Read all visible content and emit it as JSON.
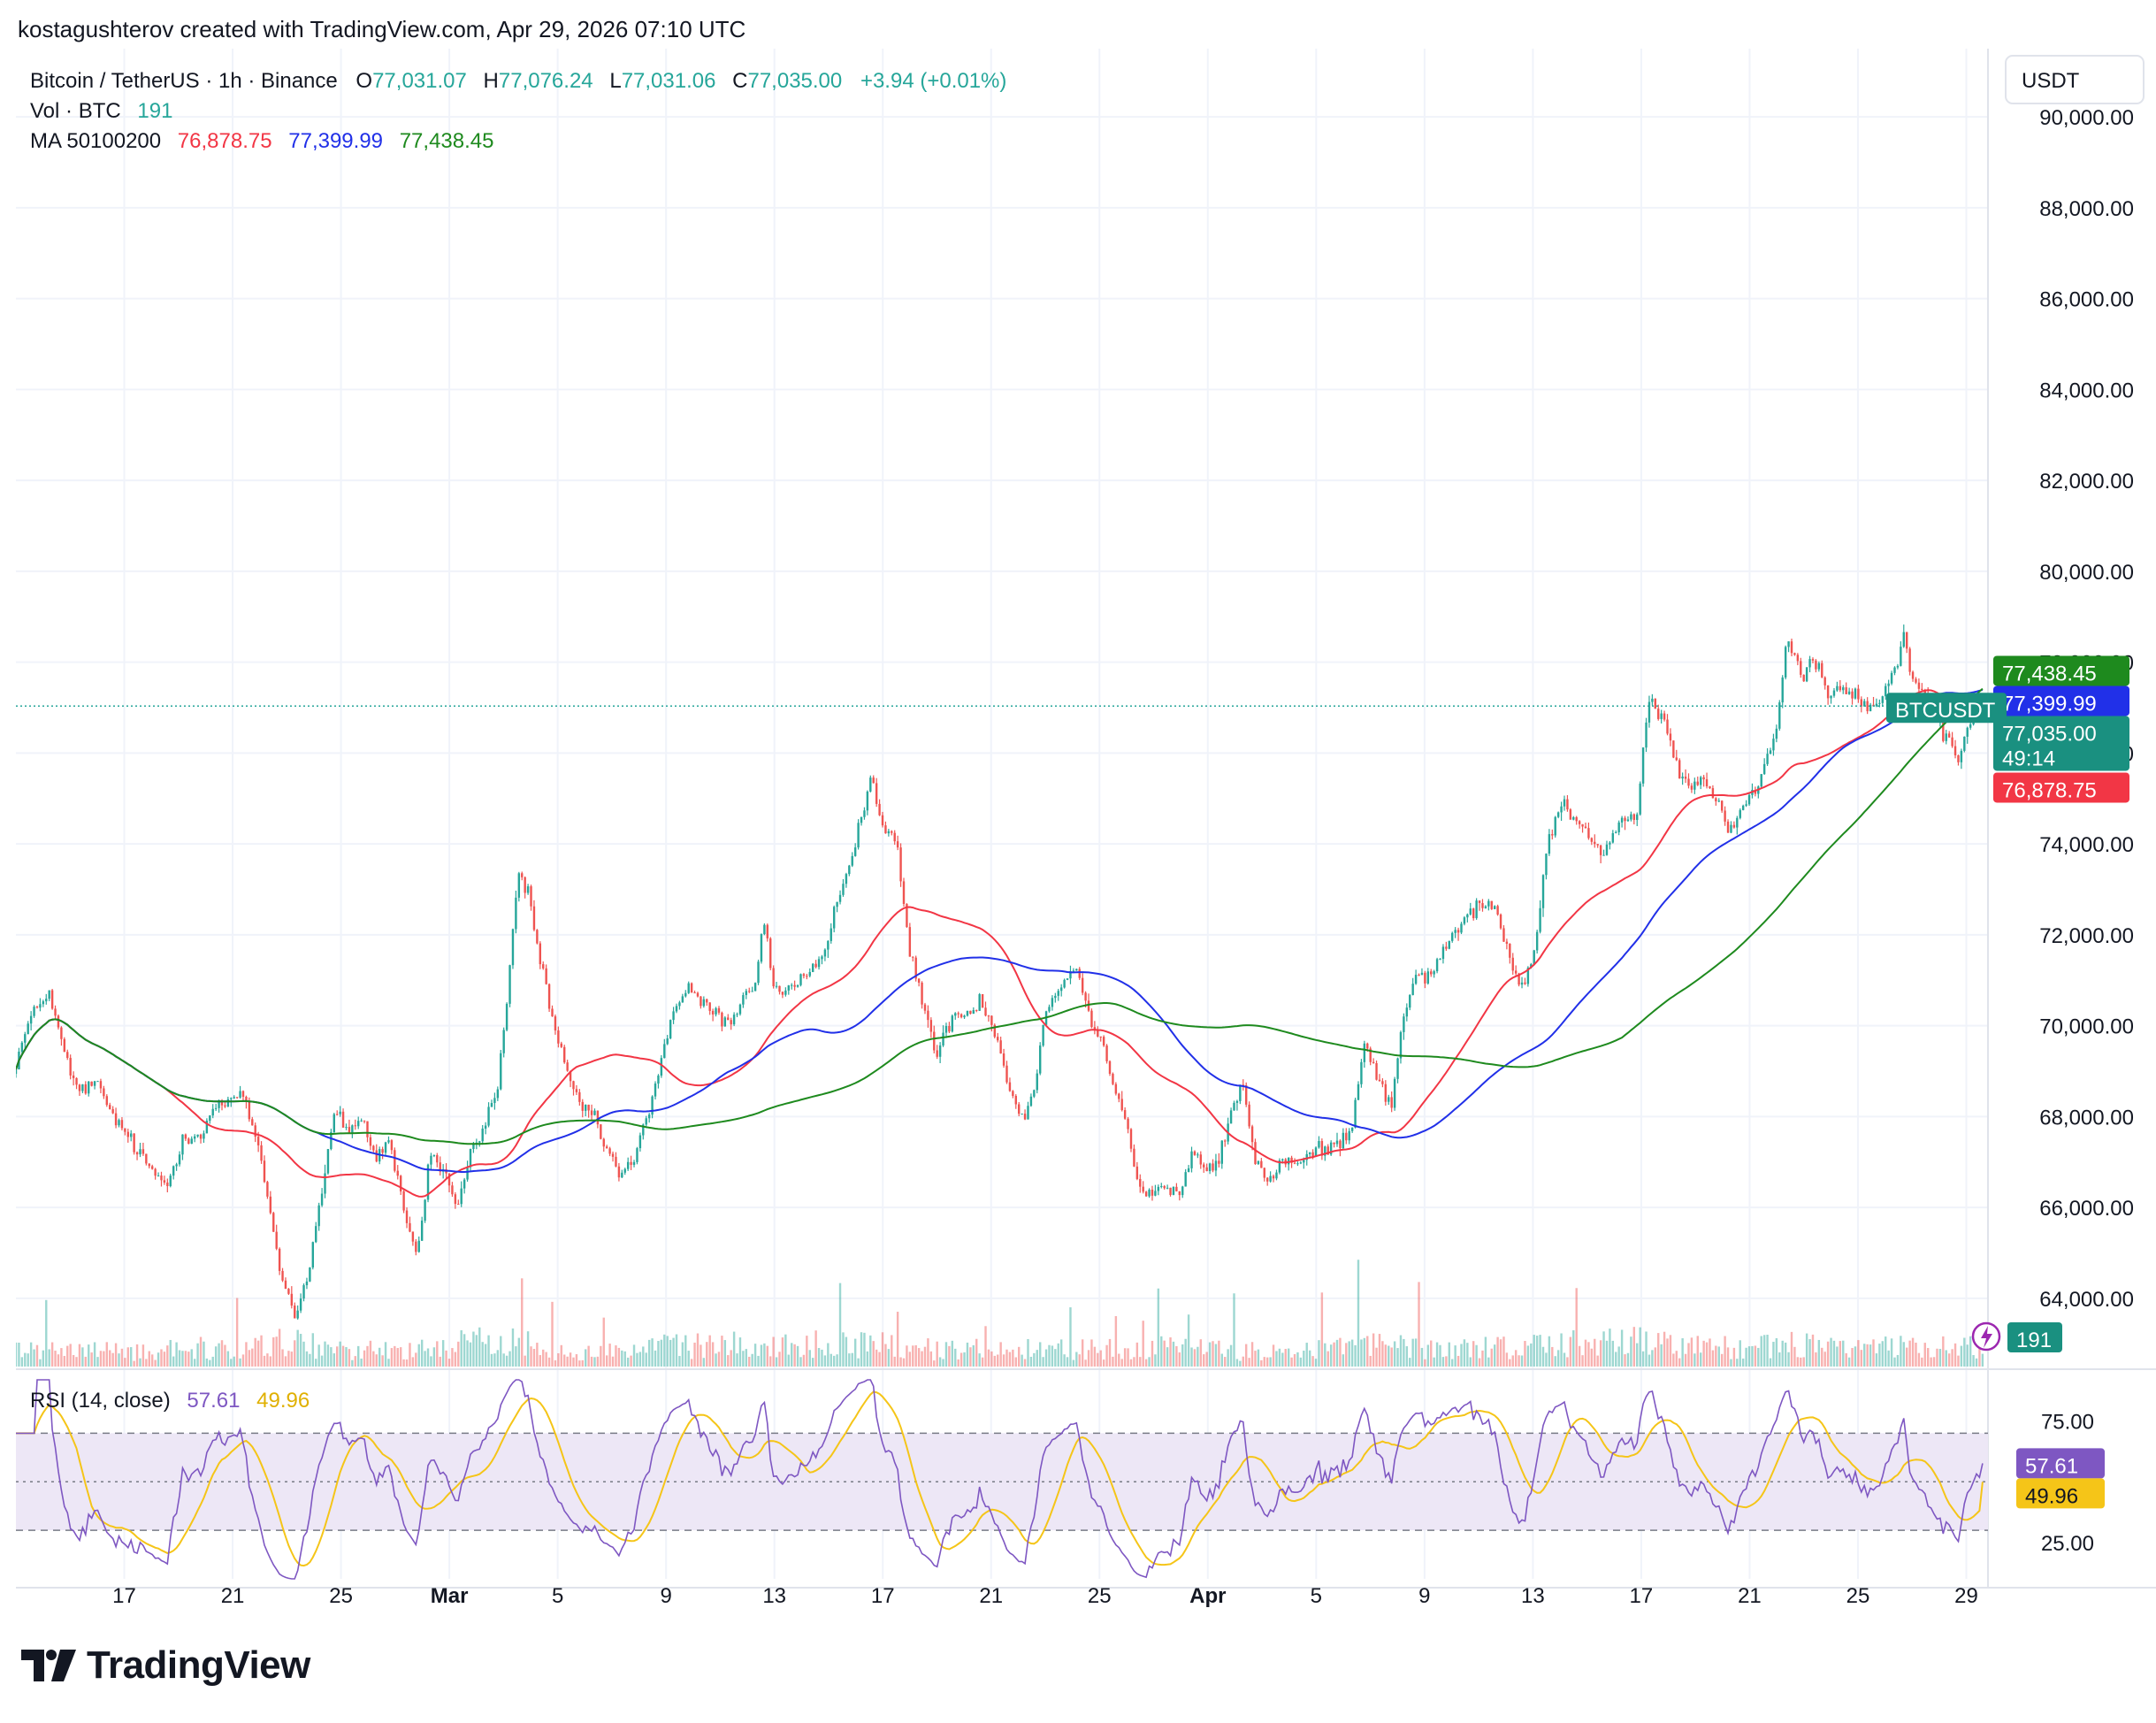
{
  "credit": "kostagushterov created with TradingView.com, Apr 29, 2026 07:10 UTC",
  "brand": "TradingView",
  "currency_label": "USDT",
  "legend": {
    "symbol": "Bitcoin / TetherUS · 1h · Binance",
    "o_label": "O",
    "o_value": "77,031.07",
    "h_label": "H",
    "h_value": "77,076.24",
    "l_label": "L",
    "l_value": "77,031.06",
    "c_label": "C",
    "c_value": "77,035.00",
    "change": "+3.94 (+0.01%)",
    "vol_label": "Vol · BTC",
    "vol_value": "191",
    "ma_label": "MA 50100200",
    "ma50": "76,878.75",
    "ma100": "77,399.99",
    "ma200": "77,438.45",
    "rsi_label": "RSI (14, close)",
    "rsi_value": "57.61",
    "rsi_ma_value": "49.96"
  },
  "price_tags": {
    "ma200": "77,438.45",
    "ma100": "77,399.99",
    "symbol": "BTCUSDT",
    "last": "77,035.00",
    "countdown": "49:14",
    "ma50": "76,878.75",
    "volume": "191",
    "rsi": "57.61",
    "rsi_ma": "49.96"
  },
  "colors": {
    "up": "#26a69a",
    "down": "#ef5350",
    "ma50": "#f23645",
    "ma100": "#2130e8",
    "ma200": "#1e8a1e",
    "rsi": "#7e57c2",
    "rsi_ma": "#f5c518",
    "rsi_band": "#ede7f6",
    "green_tag": "#1a9080"
  },
  "chart_data": {
    "type": "candlestick",
    "title": "Bitcoin / TetherUS · 1h · Binance",
    "ylim": [
      62500,
      91500
    ],
    "y_ticks": [
      "90,000.00",
      "88,000.00",
      "86,000.00",
      "84,000.00",
      "82,000.00",
      "80,000.00",
      "78,000.00",
      "76,000.00",
      "74,000.00",
      "72,000.00",
      "70,000.00",
      "68,000.00",
      "66,000.00",
      "64,000.00"
    ],
    "y_tick_values": [
      90000,
      88000,
      86000,
      84000,
      82000,
      80000,
      78000,
      76000,
      74000,
      72000,
      70000,
      68000,
      66000,
      64000
    ],
    "x_ticks": [
      "17",
      "21",
      "25",
      "Mar",
      "5",
      "9",
      "13",
      "17",
      "21",
      "25",
      "Apr",
      "5",
      "9",
      "13",
      "17",
      "21",
      "25",
      "29"
    ],
    "x_tick_days": [
      4,
      8,
      12,
      16,
      20,
      24,
      28,
      32,
      36,
      40,
      44,
      48,
      52,
      56,
      60,
      64,
      68,
      72
    ],
    "x_day_range": [
      0,
      72.8
    ],
    "price_anchors": [
      [
        0,
        69200
      ],
      [
        0.5,
        70100
      ],
      [
        1.2,
        70800
      ],
      [
        1.6,
        69800
      ],
      [
        2.2,
        68600
      ],
      [
        3,
        68700
      ],
      [
        3.6,
        68000
      ],
      [
        4.2,
        67500
      ],
      [
        5,
        66800
      ],
      [
        5.6,
        66500
      ],
      [
        6.2,
        67600
      ],
      [
        6.8,
        67600
      ],
      [
        7.3,
        68200
      ],
      [
        7.8,
        68300
      ],
      [
        8.3,
        68500
      ],
      [
        8.9,
        67500
      ],
      [
        9.3,
        66200
      ],
      [
        9.8,
        64500
      ],
      [
        10.3,
        63600
      ],
      [
        10.8,
        64600
      ],
      [
        11.3,
        66400
      ],
      [
        11.8,
        68200
      ],
      [
        12.3,
        67600
      ],
      [
        12.8,
        67900
      ],
      [
        13.3,
        67100
      ],
      [
        13.8,
        67500
      ],
      [
        14.3,
        66000
      ],
      [
        14.8,
        64900
      ],
      [
        15.3,
        67200
      ],
      [
        15.8,
        66800
      ],
      [
        16.3,
        66000
      ],
      [
        16.8,
        67200
      ],
      [
        17.3,
        67800
      ],
      [
        17.8,
        68700
      ],
      [
        18.2,
        71000
      ],
      [
        18.5,
        73300
      ],
      [
        18.9,
        73000
      ],
      [
        19.3,
        71600
      ],
      [
        19.8,
        70100
      ],
      [
        20.3,
        69000
      ],
      [
        20.8,
        68300
      ],
      [
        21.3,
        68000
      ],
      [
        21.8,
        67300
      ],
      [
        22.3,
        66700
      ],
      [
        22.8,
        67000
      ],
      [
        23.3,
        68000
      ],
      [
        23.8,
        69200
      ],
      [
        24.3,
        70400
      ],
      [
        24.8,
        70800
      ],
      [
        25.3,
        70500
      ],
      [
        25.8,
        70300
      ],
      [
        26.3,
        70000
      ],
      [
        26.8,
        70600
      ],
      [
        27.3,
        71000
      ],
      [
        27.6,
        72300
      ],
      [
        28,
        70800
      ],
      [
        28.5,
        70800
      ],
      [
        29.2,
        71100
      ],
      [
        29.8,
        71400
      ],
      [
        30.3,
        72700
      ],
      [
        30.8,
        73700
      ],
      [
        31.3,
        74800
      ],
      [
        31.6,
        75500
      ],
      [
        32,
        74400
      ],
      [
        32.5,
        74000
      ],
      [
        33,
        71600
      ],
      [
        33.5,
        70500
      ],
      [
        34,
        69300
      ],
      [
        34.6,
        70300
      ],
      [
        35,
        70200
      ],
      [
        35.6,
        70600
      ],
      [
        36.2,
        69800
      ],
      [
        36.7,
        68600
      ],
      [
        37.2,
        67900
      ],
      [
        37.6,
        68700
      ],
      [
        38,
        70300
      ],
      [
        38.5,
        70800
      ],
      [
        39.1,
        71400
      ],
      [
        39.6,
        70200
      ],
      [
        40.1,
        69700
      ],
      [
        40.6,
        68600
      ],
      [
        41,
        67900
      ],
      [
        41.4,
        66500
      ],
      [
        41.9,
        66300
      ],
      [
        42.4,
        66500
      ],
      [
        42.9,
        66200
      ],
      [
        43.4,
        67200
      ],
      [
        43.9,
        66800
      ],
      [
        44.4,
        67000
      ],
      [
        44.9,
        68200
      ],
      [
        45.3,
        68700
      ],
      [
        45.8,
        66900
      ],
      [
        46.3,
        66600
      ],
      [
        46.8,
        67100
      ],
      [
        47.3,
        66900
      ],
      [
        47.8,
        67200
      ],
      [
        48.3,
        67300
      ],
      [
        48.8,
        67400
      ],
      [
        49.3,
        67800
      ],
      [
        49.8,
        69700
      ],
      [
        50.3,
        68800
      ],
      [
        50.8,
        68200
      ],
      [
        51.2,
        70200
      ],
      [
        51.7,
        71200
      ],
      [
        52.2,
        71000
      ],
      [
        52.7,
        71700
      ],
      [
        53.2,
        72100
      ],
      [
        53.7,
        72500
      ],
      [
        54.2,
        72700
      ],
      [
        54.7,
        72500
      ],
      [
        55.2,
        71300
      ],
      [
        55.7,
        70800
      ],
      [
        56.1,
        71800
      ],
      [
        56.5,
        73800
      ],
      [
        57.0,
        75000
      ],
      [
        57.5,
        74500
      ],
      [
        58.0,
        74300
      ],
      [
        58.5,
        73800
      ],
      [
        58.8,
        74000
      ],
      [
        59.3,
        74600
      ],
      [
        59.8,
        74400
      ],
      [
        60.3,
        77200
      ],
      [
        60.8,
        76800
      ],
      [
        61.3,
        75700
      ],
      [
        61.8,
        75200
      ],
      [
        62.3,
        75400
      ],
      [
        62.8,
        75000
      ],
      [
        63.2,
        74300
      ],
      [
        63.6,
        74700
      ],
      [
        64.1,
        75100
      ],
      [
        64.6,
        75800
      ],
      [
        65.0,
        76600
      ],
      [
        65.4,
        78700
      ],
      [
        65.9,
        77700
      ],
      [
        66.4,
        78100
      ],
      [
        66.9,
        77300
      ],
      [
        67.4,
        77500
      ],
      [
        67.9,
        77300
      ],
      [
        68.4,
        77000
      ],
      [
        68.9,
        77200
      ],
      [
        69.4,
        77900
      ],
      [
        69.7,
        78700
      ],
      [
        70.0,
        77600
      ],
      [
        70.3,
        77400
      ],
      [
        70.8,
        76700
      ],
      [
        71.3,
        76300
      ],
      [
        71.7,
        75800
      ],
      [
        72.0,
        76500
      ],
      [
        72.3,
        76900
      ],
      [
        72.6,
        77035
      ]
    ],
    "volume_anchors": [
      [
        0,
        45
      ],
      [
        2,
        52
      ],
      [
        4,
        40
      ],
      [
        6,
        58
      ],
      [
        8,
        48
      ],
      [
        10,
        72
      ],
      [
        12,
        54
      ],
      [
        14,
        44
      ],
      [
        16,
        62
      ],
      [
        18,
        80
      ],
      [
        20,
        50
      ],
      [
        22,
        42
      ],
      [
        24,
        60
      ],
      [
        26,
        64
      ],
      [
        28,
        58
      ],
      [
        30,
        70
      ],
      [
        32,
        66
      ],
      [
        34,
        48
      ],
      [
        36,
        55
      ],
      [
        38,
        52
      ],
      [
        40,
        50
      ],
      [
        42,
        60
      ],
      [
        44,
        48
      ],
      [
        46,
        44
      ],
      [
        48,
        50
      ],
      [
        50,
        66
      ],
      [
        52,
        54
      ],
      [
        54,
        56
      ],
      [
        56,
        62
      ],
      [
        58,
        66
      ],
      [
        60,
        78
      ],
      [
        62,
        58
      ],
      [
        64,
        56
      ],
      [
        66,
        64
      ],
      [
        68,
        52
      ],
      [
        70,
        56
      ],
      [
        72,
        60
      ],
      [
        72.6,
        44
      ]
    ],
    "series": [
      {
        "name": "MA 50",
        "last": 76878.75
      },
      {
        "name": "MA 100",
        "last": 77399.99
      },
      {
        "name": "MA 200",
        "last": 77438.45
      }
    ],
    "rsi": {
      "label": "RSI (14, close)",
      "ylim": [
        10,
        92
      ],
      "y_ticks": [
        "75.00",
        "25.00"
      ],
      "y_tick_values": [
        75,
        25
      ],
      "upper_band": 70,
      "lower_band": 30,
      "mid": 50,
      "last": 57.61,
      "ma_last": 49.96
    }
  }
}
